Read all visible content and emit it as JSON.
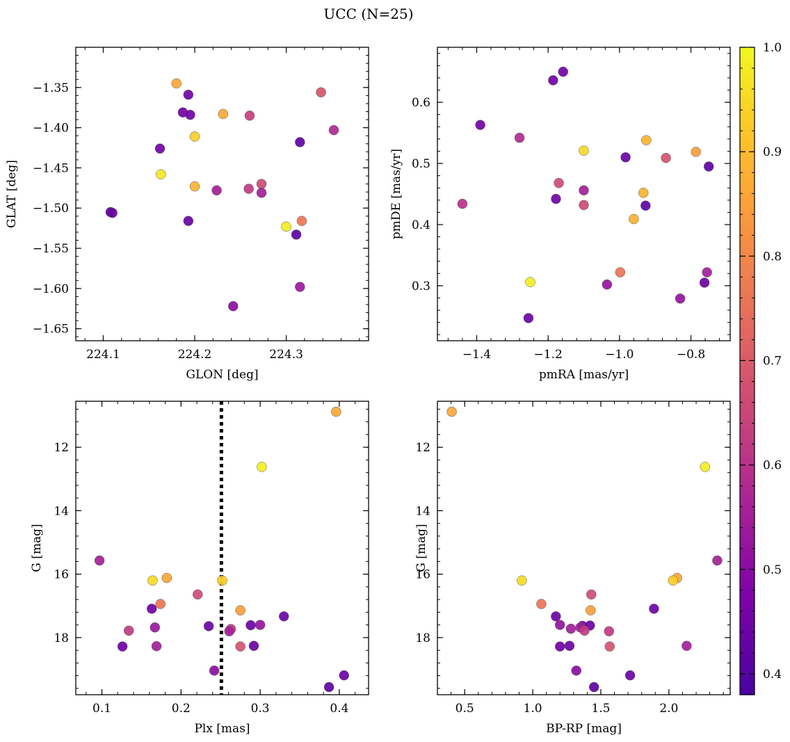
{
  "figure_title": "UCC (N=25)",
  "colors": {
    "colormap": "plasma",
    "point_edge": "#555555",
    "axes": "#000000",
    "background": "#ffffff",
    "vline": "#000000"
  },
  "colorbar": {
    "range": [
      0.38,
      1.0
    ],
    "ticks": [
      0.4,
      0.5,
      0.6,
      0.7,
      0.8,
      0.9,
      1.0
    ],
    "tick_labels": [
      "0.4",
      "0.5",
      "0.6",
      "0.7",
      "0.8",
      "0.9",
      "1.0"
    ]
  },
  "chart_data": [
    {
      "type": "scatter",
      "id": "glon-glat",
      "xlabel": "GLON [deg]",
      "ylabel": "GLAT [deg]",
      "xlim": [
        224.07,
        224.39
      ],
      "ylim": [
        -1.665,
        -1.3
      ],
      "xticks": [
        224.1,
        224.2,
        224.3
      ],
      "xtick_labels": [
        "224.1",
        "224.2",
        "224.3"
      ],
      "yticks": [
        -1.35,
        -1.4,
        -1.45,
        -1.5,
        -1.55,
        -1.6,
        -1.65
      ],
      "ytick_labels": [
        "−1.35",
        "−1.40",
        "−1.45",
        "−1.50",
        "−1.55",
        "−1.60",
        "−1.65"
      ],
      "points": [
        {
          "x": 224.18,
          "y": -1.345,
          "c": 0.86
        },
        {
          "x": 224.193,
          "y": -1.359,
          "c": 0.45
        },
        {
          "x": 224.338,
          "y": -1.356,
          "c": 0.68
        },
        {
          "x": 224.187,
          "y": -1.381,
          "c": 0.45
        },
        {
          "x": 224.195,
          "y": -1.384,
          "c": 0.45
        },
        {
          "x": 224.231,
          "y": -1.383,
          "c": 0.86
        },
        {
          "x": 224.26,
          "y": -1.385,
          "c": 0.63
        },
        {
          "x": 224.352,
          "y": -1.403,
          "c": 0.58
        },
        {
          "x": 224.2,
          "y": -1.411,
          "c": 0.93
        },
        {
          "x": 224.315,
          "y": -1.418,
          "c": 0.42
        },
        {
          "x": 224.162,
          "y": -1.426,
          "c": 0.45
        },
        {
          "x": 224.163,
          "y": -1.458,
          "c": 0.97
        },
        {
          "x": 224.2,
          "y": -1.473,
          "c": 0.88
        },
        {
          "x": 224.273,
          "y": -1.47,
          "c": 0.66
        },
        {
          "x": 224.224,
          "y": -1.478,
          "c": 0.55
        },
        {
          "x": 224.259,
          "y": -1.476,
          "c": 0.62
        },
        {
          "x": 224.273,
          "y": -1.481,
          "c": 0.55
        },
        {
          "x": 224.108,
          "y": -1.505,
          "c": 0.4
        },
        {
          "x": 224.11,
          "y": -1.506,
          "c": 0.44
        },
        {
          "x": 224.193,
          "y": -1.516,
          "c": 0.44
        },
        {
          "x": 224.317,
          "y": -1.516,
          "c": 0.76
        },
        {
          "x": 224.3,
          "y": -1.523,
          "c": 0.98
        },
        {
          "x": 224.311,
          "y": -1.533,
          "c": 0.42
        },
        {
          "x": 224.315,
          "y": -1.598,
          "c": 0.53
        },
        {
          "x": 224.242,
          "y": -1.622,
          "c": 0.5
        }
      ]
    },
    {
      "type": "scatter",
      "id": "pmra-pmde",
      "xlabel": "pmRA [mas/yr]",
      "ylabel": "pmDE [mas/yr]",
      "xlim": [
        -1.51,
        -0.69
      ],
      "ylim": [
        0.21,
        0.69
      ],
      "xticks": [
        -1.4,
        -1.2,
        -1.0,
        -0.8
      ],
      "xtick_labels": [
        "−1.4",
        "−1.2",
        "−1.0",
        "−0.8"
      ],
      "yticks": [
        0.3,
        0.4,
        0.5,
        0.6
      ],
      "ytick_labels": [
        "0.3",
        "0.4",
        "0.5",
        "0.6"
      ],
      "points": [
        {
          "x": -1.158,
          "y": 0.65,
          "c": 0.45
        },
        {
          "x": -1.186,
          "y": 0.636,
          "c": 0.45
        },
        {
          "x": -1.39,
          "y": 0.563,
          "c": 0.45
        },
        {
          "x": -1.28,
          "y": 0.542,
          "c": 0.58
        },
        {
          "x": -0.925,
          "y": 0.538,
          "c": 0.88
        },
        {
          "x": -1.1,
          "y": 0.521,
          "c": 0.95
        },
        {
          "x": -0.786,
          "y": 0.519,
          "c": 0.84
        },
        {
          "x": -0.983,
          "y": 0.51,
          "c": 0.44
        },
        {
          "x": -0.87,
          "y": 0.509,
          "c": 0.68
        },
        {
          "x": -0.75,
          "y": 0.495,
          "c": 0.42
        },
        {
          "x": -1.17,
          "y": 0.468,
          "c": 0.66
        },
        {
          "x": -1.1,
          "y": 0.456,
          "c": 0.55
        },
        {
          "x": -0.933,
          "y": 0.452,
          "c": 0.88
        },
        {
          "x": -1.178,
          "y": 0.442,
          "c": 0.45
        },
        {
          "x": -1.1,
          "y": 0.432,
          "c": 0.66
        },
        {
          "x": -0.927,
          "y": 0.431,
          "c": 0.42
        },
        {
          "x": -1.44,
          "y": 0.434,
          "c": 0.6
        },
        {
          "x": -0.96,
          "y": 0.409,
          "c": 0.88
        },
        {
          "x": -0.998,
          "y": 0.322,
          "c": 0.76
        },
        {
          "x": -0.755,
          "y": 0.322,
          "c": 0.55
        },
        {
          "x": -1.25,
          "y": 0.306,
          "c": 0.98
        },
        {
          "x": -0.762,
          "y": 0.305,
          "c": 0.44
        },
        {
          "x": -1.035,
          "y": 0.302,
          "c": 0.52
        },
        {
          "x": -0.83,
          "y": 0.279,
          "c": 0.52
        },
        {
          "x": -1.255,
          "y": 0.247,
          "c": 0.44
        }
      ]
    },
    {
      "type": "scatter",
      "id": "plx-g",
      "xlabel": "Plx [mas]",
      "ylabel": "G [mag]",
      "xlim": [
        0.067,
        0.437
      ],
      "ylim": [
        19.8,
        10.55
      ],
      "y_inverted": true,
      "xticks": [
        0.1,
        0.2,
        0.3,
        0.4
      ],
      "xtick_labels": [
        "0.1",
        "0.2",
        "0.3",
        "0.4"
      ],
      "yticks": [
        12,
        14,
        16,
        18
      ],
      "ytick_labels": [
        "12",
        "14",
        "16",
        "18"
      ],
      "vline_x": 0.251,
      "points": [
        {
          "x": 0.396,
          "y": 10.88,
          "c": 0.86
        },
        {
          "x": 0.302,
          "y": 12.62,
          "c": 0.98
        },
        {
          "x": 0.097,
          "y": 15.57,
          "c": 0.55
        },
        {
          "x": 0.164,
          "y": 16.2,
          "c": 0.95
        },
        {
          "x": 0.182,
          "y": 16.12,
          "c": 0.86
        },
        {
          "x": 0.252,
          "y": 16.2,
          "c": 0.93
        },
        {
          "x": 0.221,
          "y": 16.64,
          "c": 0.66
        },
        {
          "x": 0.174,
          "y": 16.94,
          "c": 0.76
        },
        {
          "x": 0.163,
          "y": 17.09,
          "c": 0.45
        },
        {
          "x": 0.275,
          "y": 17.14,
          "c": 0.84
        },
        {
          "x": 0.33,
          "y": 17.33,
          "c": 0.44
        },
        {
          "x": 0.288,
          "y": 17.61,
          "c": 0.44
        },
        {
          "x": 0.3,
          "y": 17.6,
          "c": 0.52
        },
        {
          "x": 0.235,
          "y": 17.64,
          "c": 0.44
        },
        {
          "x": 0.167,
          "y": 17.68,
          "c": 0.53
        },
        {
          "x": 0.134,
          "y": 17.78,
          "c": 0.62
        },
        {
          "x": 0.263,
          "y": 17.73,
          "c": 0.62
        },
        {
          "x": 0.261,
          "y": 17.8,
          "c": 0.55
        },
        {
          "x": 0.126,
          "y": 18.28,
          "c": 0.45
        },
        {
          "x": 0.169,
          "y": 18.27,
          "c": 0.55
        },
        {
          "x": 0.275,
          "y": 18.28,
          "c": 0.68
        },
        {
          "x": 0.292,
          "y": 18.26,
          "c": 0.44
        },
        {
          "x": 0.242,
          "y": 19.04,
          "c": 0.5
        },
        {
          "x": 0.406,
          "y": 19.19,
          "c": 0.44
        },
        {
          "x": 0.387,
          "y": 19.56,
          "c": 0.42
        }
      ]
    },
    {
      "type": "scatter",
      "id": "bprp-g",
      "xlabel": "BP-RP [mag]",
      "ylabel": "G [mag]",
      "xlim": [
        0.3,
        2.45
      ],
      "ylim": [
        19.8,
        10.55
      ],
      "y_inverted": true,
      "xticks": [
        0.5,
        1.0,
        1.5,
        2.0
      ],
      "xtick_labels": [
        "0.5",
        "1.0",
        "1.5",
        "2.0"
      ],
      "yticks": [
        12,
        14,
        16,
        18
      ],
      "ytick_labels": [
        "12",
        "14",
        "16",
        "18"
      ],
      "points": [
        {
          "x": 0.405,
          "y": 10.88,
          "c": 0.86
        },
        {
          "x": 2.265,
          "y": 12.62,
          "c": 0.98
        },
        {
          "x": 2.355,
          "y": 15.57,
          "c": 0.55
        },
        {
          "x": 0.92,
          "y": 16.2,
          "c": 0.95
        },
        {
          "x": 2.06,
          "y": 16.12,
          "c": 0.86
        },
        {
          "x": 2.03,
          "y": 16.2,
          "c": 0.93
        },
        {
          "x": 1.43,
          "y": 16.64,
          "c": 0.66
        },
        {
          "x": 1.063,
          "y": 16.94,
          "c": 0.76
        },
        {
          "x": 1.89,
          "y": 17.09,
          "c": 0.45
        },
        {
          "x": 1.425,
          "y": 17.14,
          "c": 0.84
        },
        {
          "x": 1.17,
          "y": 17.33,
          "c": 0.44
        },
        {
          "x": 1.2,
          "y": 17.6,
          "c": 0.52
        },
        {
          "x": 1.365,
          "y": 17.63,
          "c": 0.44
        },
        {
          "x": 1.42,
          "y": 17.62,
          "c": 0.44
        },
        {
          "x": 1.28,
          "y": 17.72,
          "c": 0.55
        },
        {
          "x": 1.35,
          "y": 17.68,
          "c": 0.55
        },
        {
          "x": 1.38,
          "y": 17.78,
          "c": 0.62
        },
        {
          "x": 1.56,
          "y": 17.8,
          "c": 0.62
        },
        {
          "x": 1.2,
          "y": 18.28,
          "c": 0.45
        },
        {
          "x": 1.27,
          "y": 18.26,
          "c": 0.44
        },
        {
          "x": 1.565,
          "y": 18.28,
          "c": 0.68
        },
        {
          "x": 2.13,
          "y": 18.26,
          "c": 0.55
        },
        {
          "x": 1.32,
          "y": 19.04,
          "c": 0.5
        },
        {
          "x": 1.715,
          "y": 19.19,
          "c": 0.44
        },
        {
          "x": 1.45,
          "y": 19.56,
          "c": 0.42
        }
      ]
    }
  ]
}
